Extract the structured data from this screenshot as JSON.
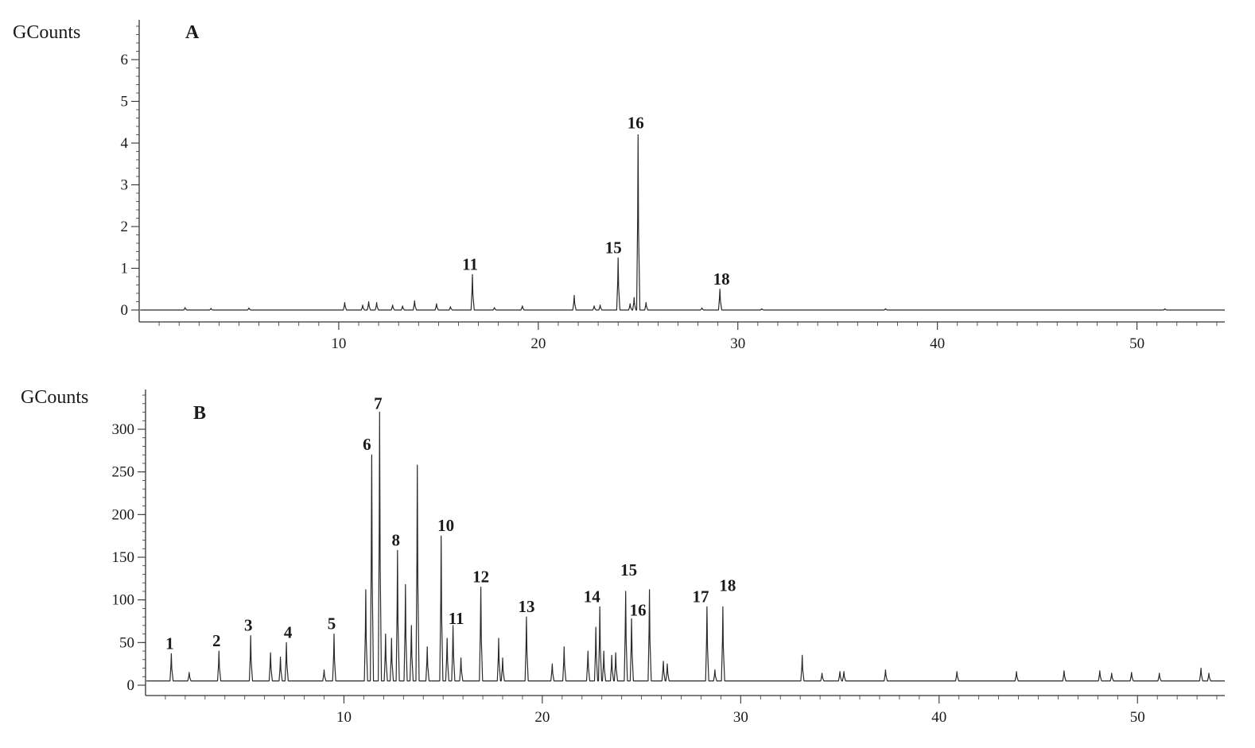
{
  "chart_data": [
    {
      "type": "line",
      "panel_label": "A",
      "ylabel": "GCounts",
      "xlim": [
        0,
        54.4
      ],
      "ylim": [
        -0.3,
        6.9
      ],
      "x_ticks": [
        10,
        20,
        30,
        40,
        50
      ],
      "y_ticks": [
        0,
        1,
        2,
        3,
        4,
        5,
        6
      ],
      "baseline": 0.0,
      "series": [
        {
          "peaks": [
            {
              "x": 2.3,
              "y": 0.06
            },
            {
              "x": 3.6,
              "y": 0.04
            },
            {
              "x": 5.5,
              "y": 0.05
            },
            {
              "x": 10.3,
              "y": 0.18
            },
            {
              "x": 11.2,
              "y": 0.12
            },
            {
              "x": 11.5,
              "y": 0.2
            },
            {
              "x": 11.9,
              "y": 0.18
            },
            {
              "x": 12.7,
              "y": 0.12
            },
            {
              "x": 13.2,
              "y": 0.1
            },
            {
              "x": 13.8,
              "y": 0.22
            },
            {
              "x": 14.9,
              "y": 0.15
            },
            {
              "x": 15.6,
              "y": 0.08
            },
            {
              "x": 16.7,
              "y": 0.85,
              "label": "11"
            },
            {
              "x": 17.8,
              "y": 0.06
            },
            {
              "x": 19.2,
              "y": 0.1
            },
            {
              "x": 21.8,
              "y": 0.35
            },
            {
              "x": 22.8,
              "y": 0.1
            },
            {
              "x": 23.1,
              "y": 0.12
            },
            {
              "x": 24.0,
              "y": 1.25,
              "label": "15"
            },
            {
              "x": 24.6,
              "y": 0.15
            },
            {
              "x": 24.8,
              "y": 0.3
            },
            {
              "x": 25.0,
              "y": 4.2,
              "label": "16"
            },
            {
              "x": 25.4,
              "y": 0.18
            },
            {
              "x": 28.2,
              "y": 0.05
            },
            {
              "x": 29.1,
              "y": 0.5,
              "label": "18"
            },
            {
              "x": 31.2,
              "y": 0.03
            },
            {
              "x": 37.4,
              "y": 0.03
            },
            {
              "x": 51.4,
              "y": 0.03
            }
          ]
        }
      ]
    },
    {
      "type": "line",
      "panel_label": "B",
      "ylabel": "GCounts",
      "xlim": [
        0,
        54.4
      ],
      "ylim": [
        -10,
        350
      ],
      "x_ticks": [
        10,
        20,
        30,
        40,
        50
      ],
      "y_ticks": [
        0,
        50,
        100,
        150,
        200,
        250,
        300
      ],
      "baseline": 5,
      "series": [
        {
          "peaks": [
            {
              "x": 1.3,
              "y": 37,
              "label": "1"
            },
            {
              "x": 2.2,
              "y": 15
            },
            {
              "x": 3.7,
              "y": 40,
              "label": "2"
            },
            {
              "x": 5.3,
              "y": 58,
              "label": "3"
            },
            {
              "x": 6.3,
              "y": 38
            },
            {
              "x": 6.8,
              "y": 33
            },
            {
              "x": 7.1,
              "y": 50,
              "label": "4"
            },
            {
              "x": 9.0,
              "y": 18
            },
            {
              "x": 9.5,
              "y": 60,
              "label": "5"
            },
            {
              "x": 11.1,
              "y": 112
            },
            {
              "x": 11.4,
              "y": 270,
              "label": "6"
            },
            {
              "x": 11.8,
              "y": 320,
              "label": "7"
            },
            {
              "x": 12.1,
              "y": 60
            },
            {
              "x": 12.4,
              "y": 55
            },
            {
              "x": 12.7,
              "y": 158,
              "label": "8"
            },
            {
              "x": 13.1,
              "y": 118
            },
            {
              "x": 13.4,
              "y": 70
            },
            {
              "x": 13.7,
              "y": 258
            },
            {
              "x": 14.2,
              "y": 45
            },
            {
              "x": 14.9,
              "y": 175,
              "label": "10"
            },
            {
              "x": 15.2,
              "y": 55
            },
            {
              "x": 15.5,
              "y": 70,
              "label": "11"
            },
            {
              "x": 15.9,
              "y": 32
            },
            {
              "x": 16.9,
              "y": 115,
              "label": "12"
            },
            {
              "x": 17.8,
              "y": 55
            },
            {
              "x": 18.0,
              "y": 32
            },
            {
              "x": 19.2,
              "y": 80,
              "label": "13"
            },
            {
              "x": 20.5,
              "y": 25
            },
            {
              "x": 21.1,
              "y": 45
            },
            {
              "x": 22.3,
              "y": 40
            },
            {
              "x": 22.7,
              "y": 68
            },
            {
              "x": 22.9,
              "y": 92,
              "label": "14"
            },
            {
              "x": 23.1,
              "y": 40
            },
            {
              "x": 23.5,
              "y": 35
            },
            {
              "x": 23.7,
              "y": 38
            },
            {
              "x": 24.2,
              "y": 110,
              "label": "15"
            },
            {
              "x": 24.5,
              "y": 78,
              "label": "16"
            },
            {
              "x": 25.4,
              "y": 112
            },
            {
              "x": 26.1,
              "y": 28
            },
            {
              "x": 26.3,
              "y": 25
            },
            {
              "x": 28.3,
              "y": 92,
              "label": "17"
            },
            {
              "x": 28.7,
              "y": 18
            },
            {
              "x": 29.1,
              "y": 92,
              "label": "18"
            },
            {
              "x": 33.1,
              "y": 35
            },
            {
              "x": 34.1,
              "y": 14
            },
            {
              "x": 35.0,
              "y": 16
            },
            {
              "x": 35.2,
              "y": 16
            },
            {
              "x": 37.3,
              "y": 18
            },
            {
              "x": 40.9,
              "y": 16
            },
            {
              "x": 43.9,
              "y": 16
            },
            {
              "x": 46.3,
              "y": 17
            },
            {
              "x": 48.1,
              "y": 17
            },
            {
              "x": 48.7,
              "y": 14
            },
            {
              "x": 49.7,
              "y": 15
            },
            {
              "x": 51.1,
              "y": 14
            },
            {
              "x": 53.2,
              "y": 20
            },
            {
              "x": 53.6,
              "y": 14
            }
          ]
        }
      ]
    }
  ]
}
